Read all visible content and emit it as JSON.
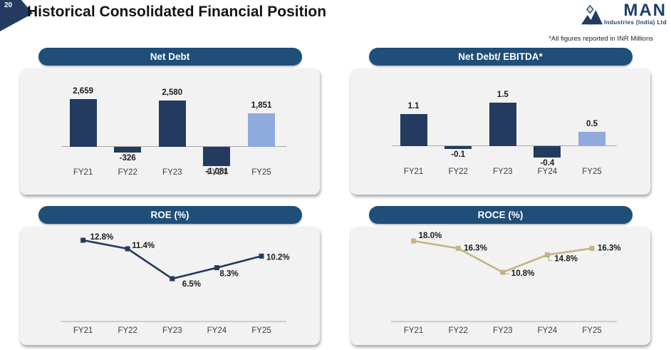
{
  "page": {
    "number": "20",
    "title": "Historical Consolidated Financial Position",
    "note": "*All figures reported in INR Millions"
  },
  "logo": {
    "name": "MAN",
    "subtitle": "Industries (India) Ltd"
  },
  "colors": {
    "pill_blue": "#1F4E79",
    "bar_navy": "#243B60",
    "bar_light_blue": "#8FAADC",
    "roe_line": "#243B60",
    "roce_line": "#C4B383",
    "logo_navy": "#1C3D6E",
    "axis_gray": "#A8A8A8"
  },
  "chart_data": [
    {
      "type": "bar",
      "title": "Net Debt",
      "categories": [
        "FY21",
        "FY22",
        "FY23",
        "FY24",
        "FY25"
      ],
      "values": [
        2659,
        -326,
        2580,
        -1081,
        1851
      ],
      "value_labels": [
        "2,659",
        "-326",
        "2,580",
        "-1,081",
        "1,851"
      ],
      "bar_colors": [
        "#243B60",
        "#243B60",
        "#243B60",
        "#243B60",
        "#8FAADC"
      ],
      "baseline": 0,
      "grid": false,
      "legend": false
    },
    {
      "type": "bar",
      "title": "Net Debt/ EBITDA*",
      "categories": [
        "FY21",
        "FY22",
        "FY23",
        "FY24",
        "FY25"
      ],
      "values": [
        1.1,
        -0.1,
        1.5,
        -0.4,
        0.5
      ],
      "value_labels": [
        "1.1",
        "-0.1",
        "1.5",
        "-0.4",
        "0.5"
      ],
      "bar_colors": [
        "#243B60",
        "#243B60",
        "#243B60",
        "#243B60",
        "#8FAADC"
      ],
      "baseline": 0,
      "grid": false,
      "legend": false
    },
    {
      "type": "line",
      "title": "ROE (%)",
      "categories": [
        "FY21",
        "FY22",
        "FY23",
        "FY24",
        "FY25"
      ],
      "values": [
        12.8,
        11.4,
        6.5,
        8.3,
        10.2
      ],
      "value_labels": [
        "12.8%",
        "11.4%",
        "6.5%",
        "8.3%",
        "10.2%"
      ],
      "line_color": "#243B60",
      "marker": "square",
      "grid": false,
      "legend": false
    },
    {
      "type": "line",
      "title": "ROCE (%)",
      "categories": [
        "FY21",
        "FY22",
        "FY23",
        "FY24",
        "FY25"
      ],
      "values": [
        18.0,
        16.3,
        10.8,
        14.8,
        16.3
      ],
      "value_labels": [
        "18.0%",
        "16.3%",
        "10.8%",
        "14.8%",
        "16.3%"
      ],
      "line_color": "#C4B383",
      "marker": "square",
      "grid": false,
      "legend": false
    }
  ]
}
